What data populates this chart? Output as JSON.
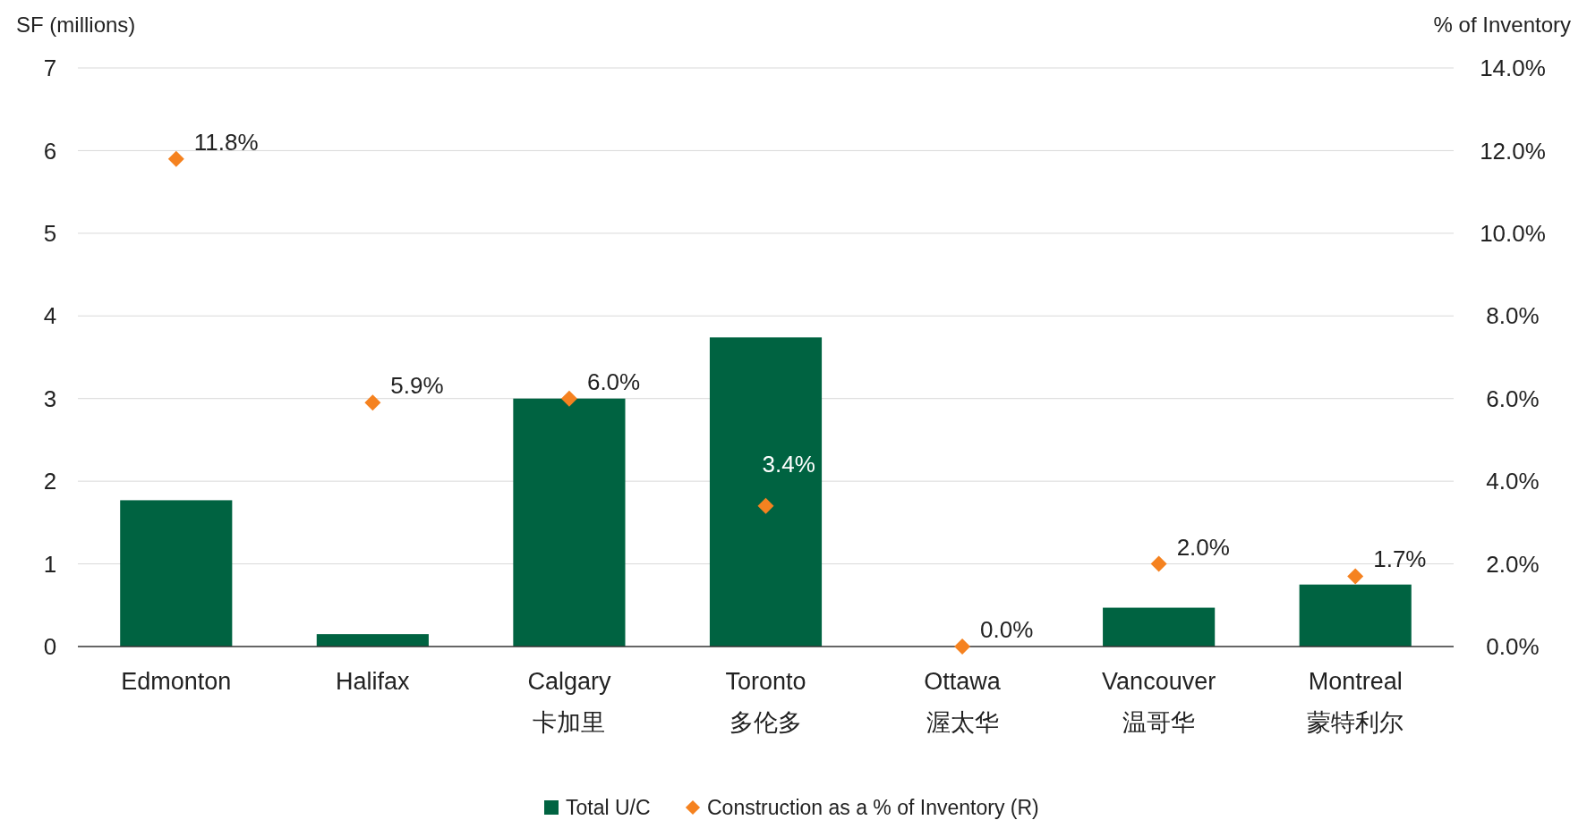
{
  "chart_data": {
    "type": "bar",
    "categories": [
      "Edmonton",
      "Halifax",
      "Calgary\n卡加里",
      "Toronto\n多伦多",
      "Ottawa\n渥太华",
      "Vancouver\n温哥华",
      "Montreal\n蒙特利尔"
    ],
    "series": [
      {
        "name": "Total U/C",
        "color": "#006341",
        "values": [
          1.77,
          0.15,
          3.0,
          3.74,
          0,
          0.47,
          0.75
        ]
      },
      {
        "name": "Construction as a % of Inventory (R)",
        "type": "scatter",
        "axis": "y2",
        "marker": "diamond",
        "color": "#f58220",
        "values": [
          11.8,
          5.9,
          6.0,
          3.4,
          0.0,
          2.0,
          1.7
        ],
        "value_labels": [
          "11.8%",
          "5.9%",
          "6.0%",
          "3.4%",
          "0.0%",
          "2.0%",
          "1.7%"
        ]
      }
    ],
    "ylabel": "SF (millions)",
    "y2label": "% of Inventory",
    "ylim": [
      0,
      7
    ],
    "yticks": [
      0,
      1,
      2,
      3,
      4,
      5,
      6,
      7
    ],
    "y2lim": [
      0,
      14
    ],
    "y2ticks": [
      {
        "value": 0,
        "label": "0.0%"
      },
      {
        "value": 2,
        "label": "2.0%"
      },
      {
        "value": 4,
        "label": "4.0%"
      },
      {
        "value": 6,
        "label": "6.0%"
      },
      {
        "value": 8,
        "label": "8.0%"
      },
      {
        "value": 10,
        "label": "10.0%"
      },
      {
        "value": 12,
        "label": "12.0%"
      },
      {
        "value": 14,
        "label": "14.0%"
      }
    ],
    "grid": "y",
    "legend": "bottom"
  }
}
